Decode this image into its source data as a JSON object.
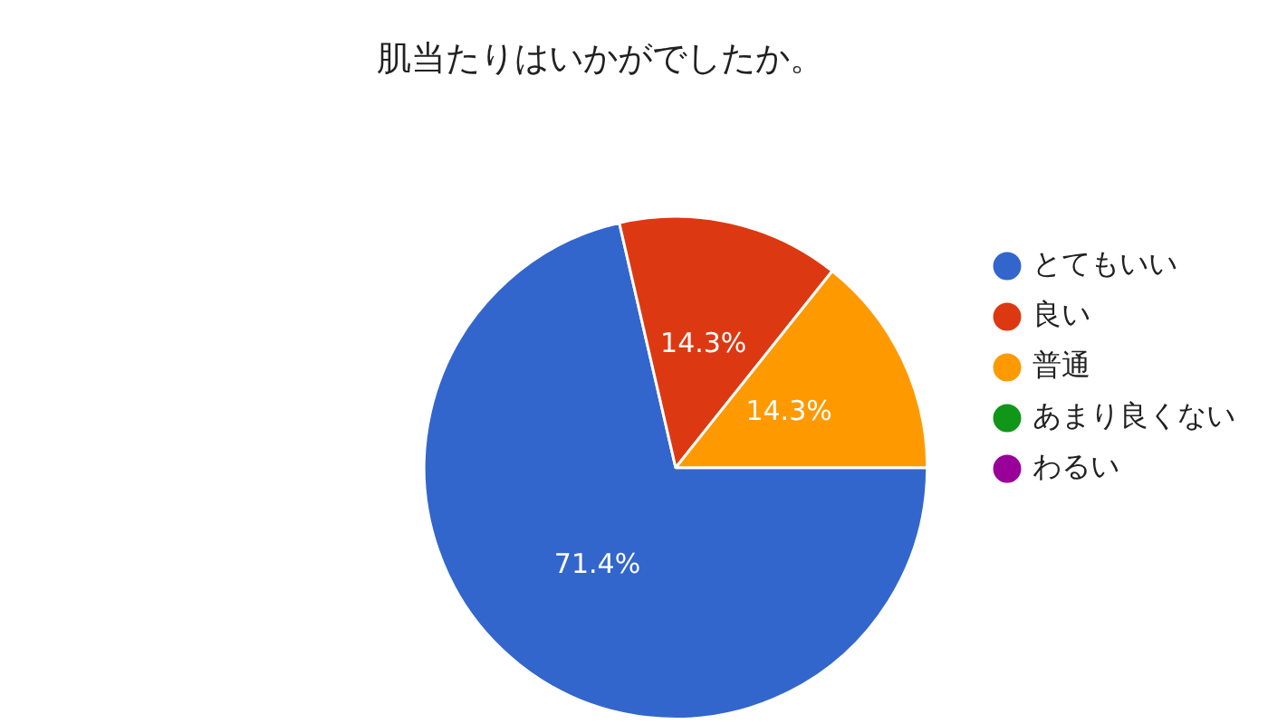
{
  "chart_data": {
    "type": "pie",
    "title": "肌当たりはいかがでしたか。",
    "categories": [
      "とてもいい",
      "良い",
      "普通",
      "あまり良くない",
      "わるい"
    ],
    "values": [
      71.4,
      14.3,
      14.3,
      0,
      0
    ],
    "colors": [
      "#3366cc",
      "#dc3912",
      "#ff9900",
      "#109618",
      "#990099"
    ],
    "value_labels": [
      "71.4%",
      "14.3%",
      "14.3%",
      null,
      null
    ],
    "legend": "right"
  }
}
